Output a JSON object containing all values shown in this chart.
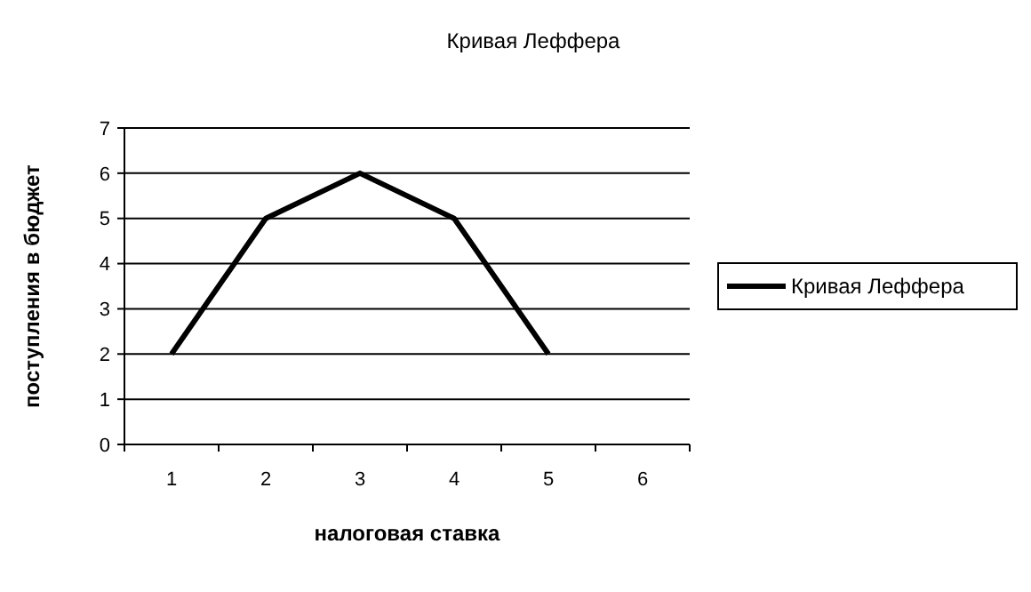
{
  "chart_data": {
    "type": "line",
    "title": "Кривая Леффера",
    "xlabel": "налоговая ставка",
    "ylabel": "поступления в бюджет",
    "categories": [
      "1",
      "2",
      "3",
      "4",
      "5",
      "6"
    ],
    "series": [
      {
        "name": "Кривая Леффера",
        "color": "#000000",
        "values": [
          2,
          5,
          6,
          5,
          2,
          null
        ]
      }
    ],
    "ylim": [
      0,
      7
    ],
    "yticks": [
      0,
      1,
      2,
      3,
      4,
      5,
      6,
      7
    ],
    "grid": "y",
    "legend": "right",
    "marker": "none",
    "line_style": "solid"
  }
}
